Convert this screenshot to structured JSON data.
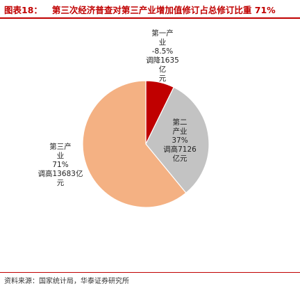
{
  "header": {
    "figure_label": "图表18：",
    "title": "第三次经济普查对第三产业增加值修订占总修订比重 71%"
  },
  "chart_data": {
    "type": "pie",
    "slices": [
      {
        "name": "第一产业",
        "line1": "第一产",
        "line2": "业",
        "pct_label": "-8.5%",
        "note1": "调降1635亿",
        "note2": "元",
        "value": 1635,
        "color": "#c00000"
      },
      {
        "name": "第二产业",
        "line1": "第二",
        "line2": "产业",
        "pct_label": "37%",
        "note1": "调高7126",
        "note2": "亿元",
        "value": 7126,
        "color": "#c3c3c3"
      },
      {
        "name": "第三产业",
        "line1": "第三产",
        "line2": "业",
        "pct_label": "71%",
        "note1": "调高13683亿",
        "note2": "元",
        "value": 13683,
        "color": "#f4b183"
      }
    ]
  },
  "footer": {
    "source": "资料来源：国家统计局，华泰证券研究所"
  }
}
